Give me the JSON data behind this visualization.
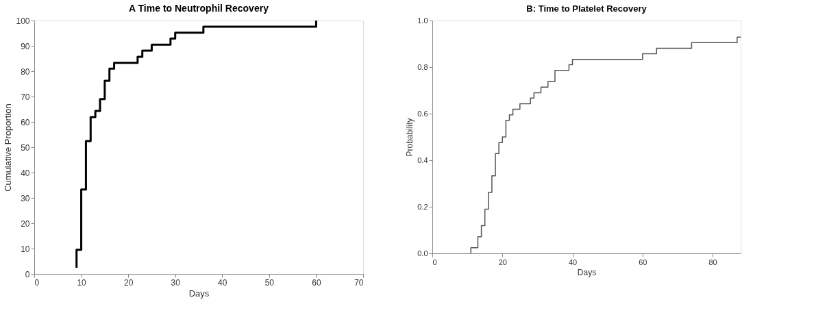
{
  "chart_data": [
    {
      "type": "step",
      "title": "A    Time to Neutrophil Recovery",
      "xlabel": "Days",
      "ylabel": "Cumulative Proportion",
      "xlim": [
        0,
        70
      ],
      "xticks": [
        0,
        10,
        20,
        30,
        40,
        50,
        60,
        70
      ],
      "ylim": [
        0,
        100
      ],
      "yticks": [
        0,
        10,
        20,
        30,
        40,
        50,
        60,
        70,
        80,
        90,
        100
      ],
      "grid": false,
      "series": [
        {
          "color": "#000000",
          "x": [
            9,
            9,
            10,
            11,
            12,
            13,
            14,
            15,
            16,
            17,
            22,
            23,
            25,
            29,
            30,
            36,
            60
          ],
          "values": [
            2.4,
            9.5,
            33.3,
            52.4,
            61.9,
            64.3,
            69,
            76.2,
            81,
            83.3,
            85.7,
            88.1,
            90.5,
            92.9,
            95.2,
            97.6,
            100
          ]
        }
      ]
    },
    {
      "type": "step",
      "title": "B: Time to Platelet Recovery",
      "xlabel": "Days",
      "ylabel": "Probability",
      "xlim": [
        0,
        88
      ],
      "xticks": [
        0,
        20,
        40,
        60,
        80
      ],
      "ylim": [
        0,
        1
      ],
      "yticks": [
        {
          "value": 0,
          "label": "0.0"
        },
        {
          "value": 0.2,
          "label": "0.2"
        },
        {
          "value": 0.4,
          "label": "0.4"
        },
        {
          "value": 0.6,
          "label": "0.6"
        },
        {
          "value": 0.8,
          "label": "0.8"
        },
        {
          "value": 1,
          "label": "1.0"
        }
      ],
      "grid": false,
      "series": [
        {
          "color": "#555555",
          "x": [
            11,
            11,
            13,
            14,
            15,
            16,
            17,
            18,
            19,
            20,
            21,
            22,
            23,
            25,
            28,
            29,
            31,
            33,
            35,
            39,
            40,
            60,
            64,
            74,
            87,
            88
          ],
          "values": [
            0,
            0.024,
            0.071,
            0.119,
            0.19,
            0.262,
            0.333,
            0.429,
            0.476,
            0.5,
            0.571,
            0.595,
            0.619,
            0.643,
            0.667,
            0.69,
            0.714,
            0.738,
            0.786,
            0.81,
            0.833,
            0.857,
            0.881,
            0.905,
            0.929,
            0.929
          ]
        }
      ]
    }
  ]
}
